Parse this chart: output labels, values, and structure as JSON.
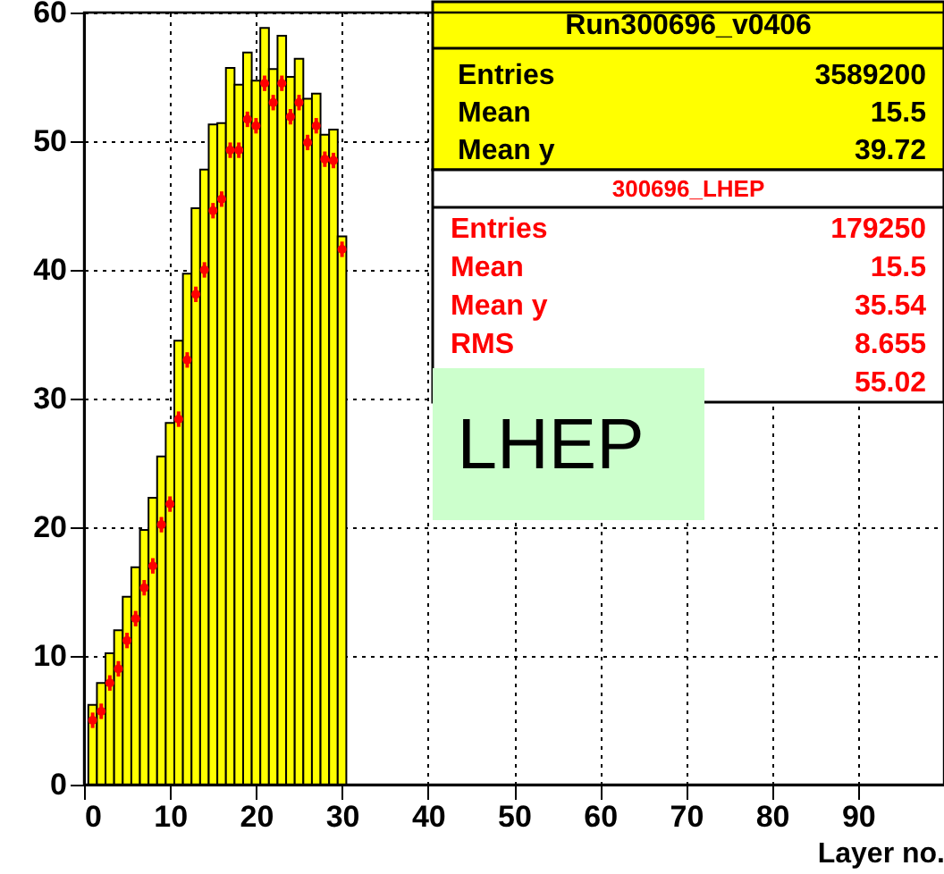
{
  "chart_data": {
    "type": "histogram",
    "xlabel": "Layer no.",
    "xlim": [
      0,
      100
    ],
    "xticks": [
      0,
      10,
      20,
      30,
      40,
      50,
      60,
      70,
      80,
      90
    ],
    "ylim": [
      0,
      60
    ],
    "yticks": [
      0,
      10,
      20,
      30,
      40,
      50,
      60
    ],
    "grid": true,
    "series": [
      {
        "color": "#ffff00",
        "bins": [
          0.5,
          1.5,
          2.5,
          3.5,
          4.5,
          5.5,
          6.5,
          7.5,
          8.5,
          9.5,
          10.5,
          11.5,
          12.5,
          13.5,
          14.5,
          15.5,
          16.5,
          17.5,
          18.5,
          19.5,
          20.5,
          21.5,
          22.5,
          23.5,
          24.5,
          25.5,
          26.5,
          27.5,
          28.5,
          29.5,
          30.5
        ],
        "values": [
          6.2,
          7.9,
          10.2,
          12.0,
          14.6,
          16.9,
          19.8,
          22.3,
          25.5,
          28.1,
          34.5,
          39.7,
          44.8,
          47.8,
          51.3,
          51.4,
          55.7,
          54.4,
          56.9,
          54.7,
          58.8,
          55.6,
          58.2,
          55.0,
          56.4,
          53.3,
          53.7,
          50.5,
          50.9,
          42.6
        ]
      },
      {
        "type": "scatter",
        "color": "#ff0000",
        "marker": "circle",
        "x": [
          1,
          2,
          3,
          4,
          5,
          6,
          7,
          8,
          9,
          10,
          11,
          12,
          13,
          14,
          15,
          16,
          17,
          18,
          19,
          20,
          21,
          22,
          23,
          24,
          25,
          26,
          27,
          28,
          29,
          30
        ],
        "values": [
          5.0,
          5.7,
          7.9,
          9.0,
          11.2,
          12.9,
          15.3,
          17.0,
          20.2,
          21.8,
          28.4,
          33.0,
          38.1,
          40.0,
          44.6,
          45.5,
          49.3,
          49.3,
          51.7,
          51.2,
          54.5,
          53.0,
          54.5,
          51.9,
          53.0,
          49.9,
          51.2,
          48.6,
          48.5,
          41.6
        ],
        "errors": [
          0.6,
          0.6,
          0.6,
          0.6,
          0.6,
          0.6,
          0.6,
          0.6,
          0.6,
          0.6,
          0.6,
          0.6,
          0.6,
          0.6,
          0.6,
          0.6,
          0.6,
          0.6,
          0.6,
          0.6,
          0.6,
          0.6,
          0.6,
          0.6,
          0.6,
          0.6,
          0.6,
          0.6,
          0.6,
          0.6
        ]
      }
    ],
    "annotations": [
      "Run300696_v0406",
      "Entries",
      "3589200",
      "Mean",
      "15.5",
      "Mean y",
      "39.72",
      "300696_LHEP",
      "Entries",
      "179250",
      "Mean",
      "15.5",
      "Mean y",
      "35.54",
      "RMS",
      "8.655",
      "55.02",
      "LHEP"
    ]
  }
}
